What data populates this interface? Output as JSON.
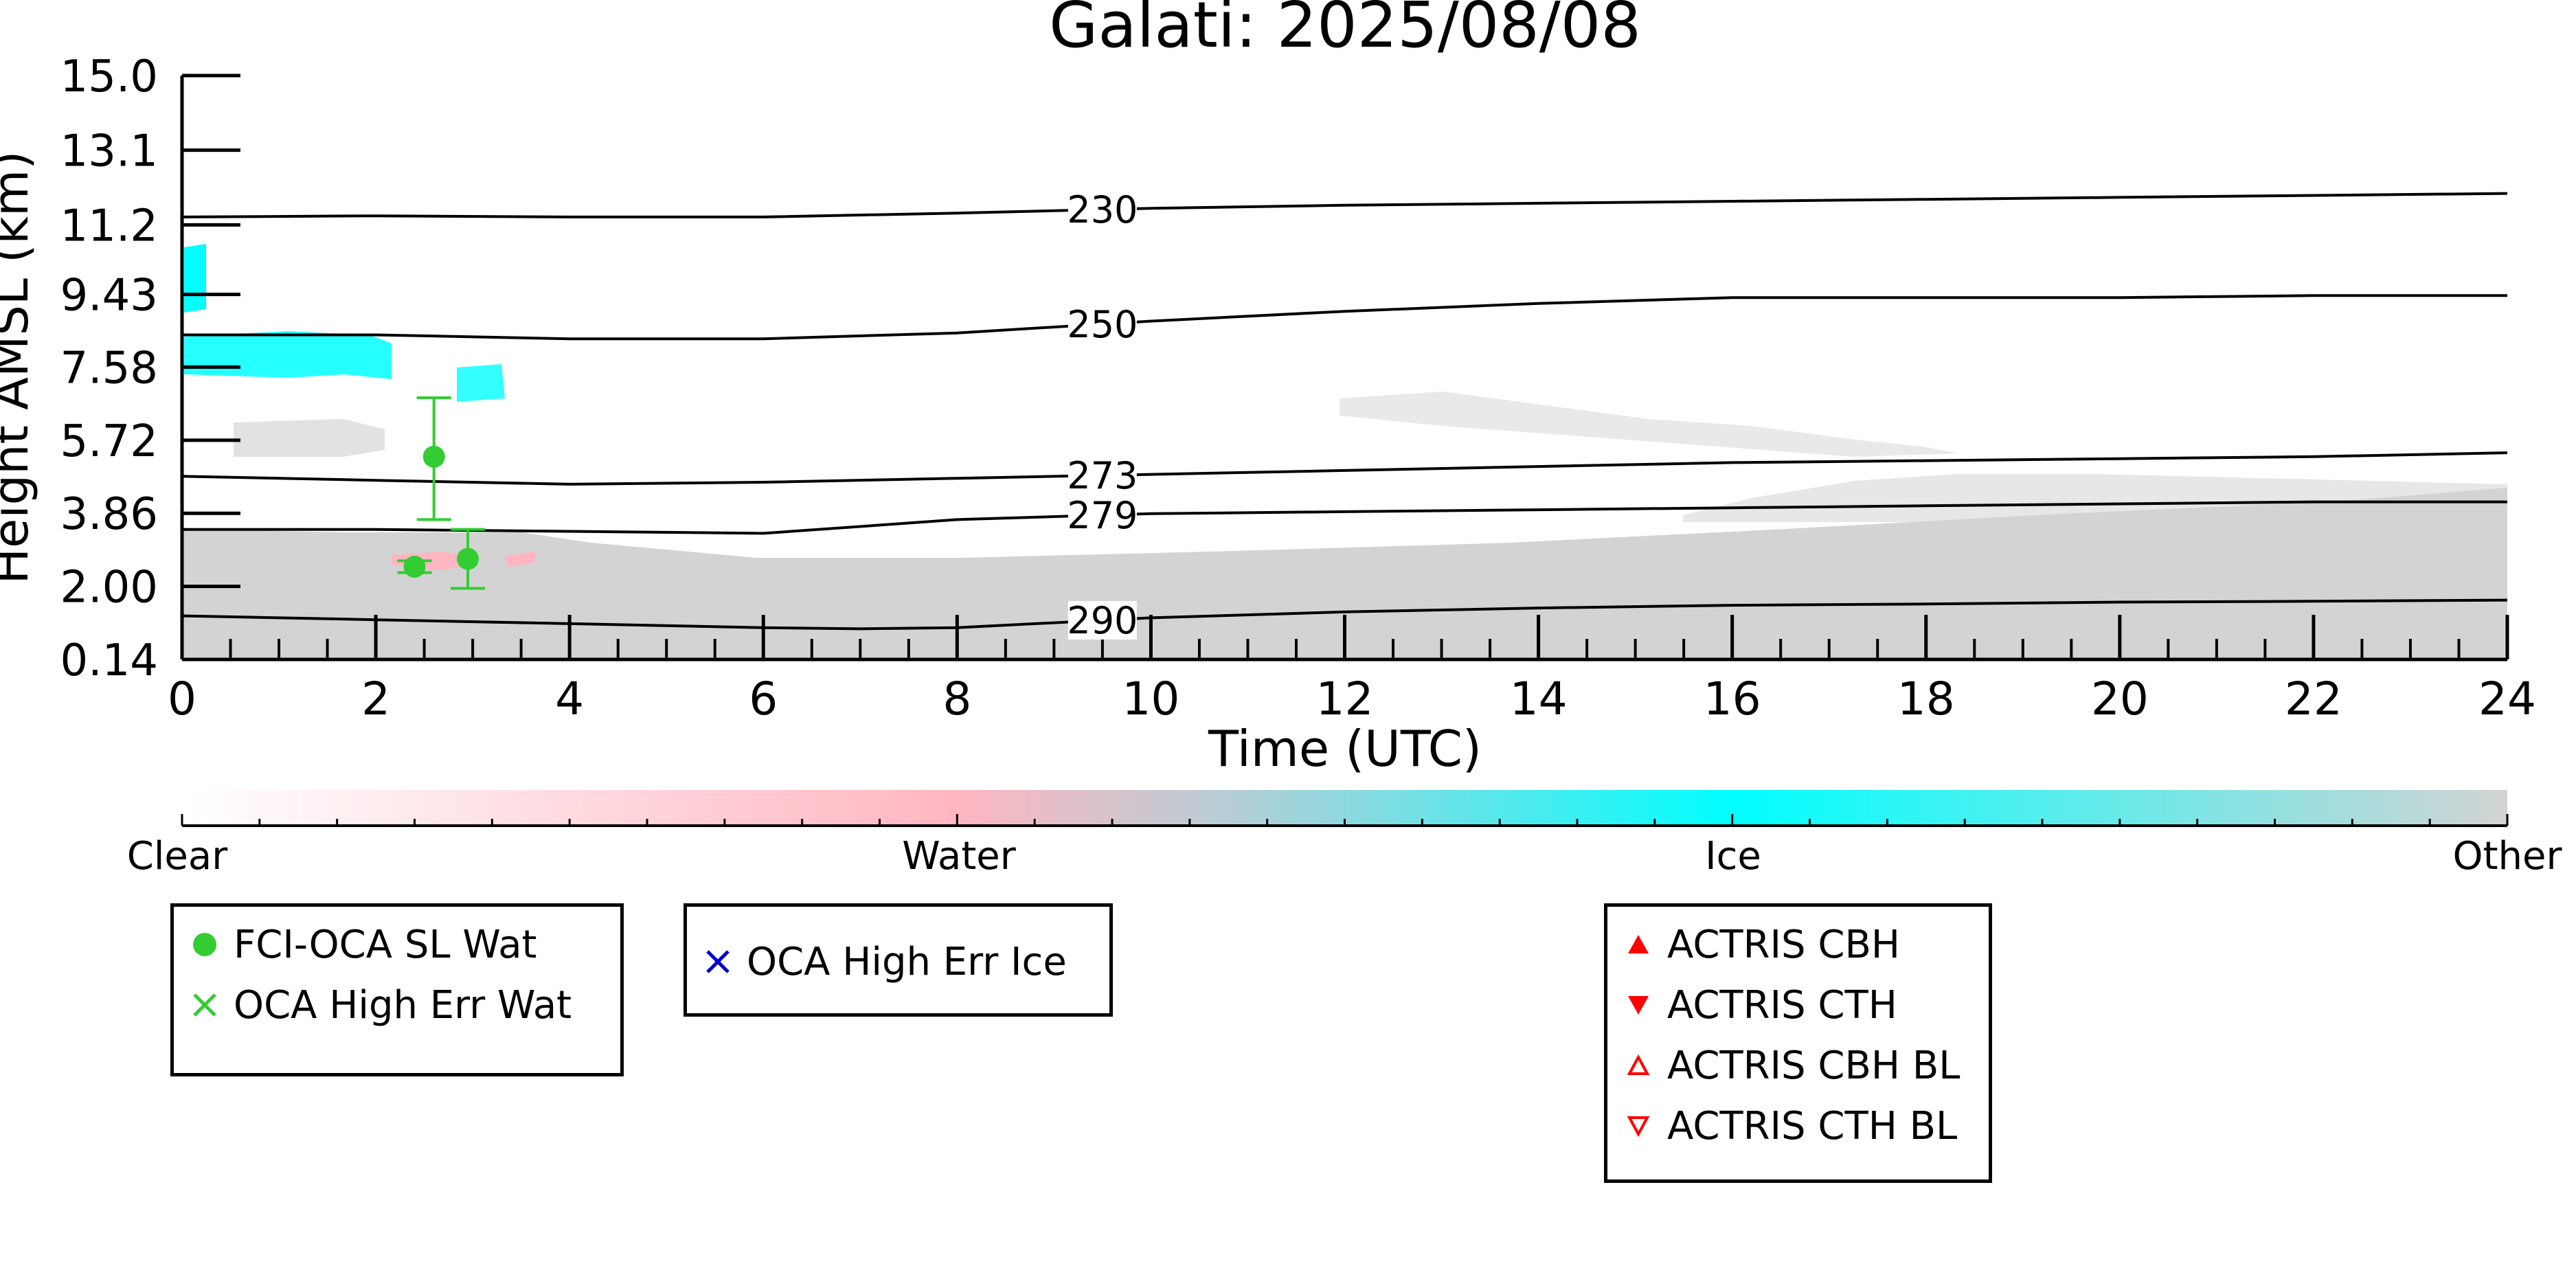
{
  "chart_data": {
    "type": "heatmap",
    "title": "Galati: 2025/08/08",
    "xlabel": "Time (UTC)",
    "ylabel": "Height AMSL (km)",
    "xlim": [
      0,
      24
    ],
    "ylim": [
      0.14,
      15.0
    ],
    "x_ticks": [
      "0",
      "2",
      "4",
      "6",
      "8",
      "10",
      "12",
      "14",
      "16",
      "18",
      "20",
      "22",
      "24"
    ],
    "y_ticks": [
      "0.14",
      "2.00",
      "3.86",
      "5.72",
      "7.58",
      "9.43",
      "11.2",
      "13.1",
      "15.0"
    ],
    "y_tick_values": [
      0.14,
      2.0,
      3.86,
      5.72,
      7.58,
      9.43,
      11.2,
      13.1,
      15.0
    ],
    "colorbar": {
      "labels": [
        "Clear",
        "Water",
        "Ice",
        "Other"
      ],
      "colors": {
        "clear": "#ffffff",
        "water": "#ffb6c1",
        "ice": "#00ffff",
        "other": "#d3d3d3"
      }
    },
    "isotherms": [
      {
        "label": "230",
        "x": [
          0,
          2,
          4,
          6,
          8,
          10,
          12,
          14,
          16,
          18,
          20,
          22,
          24
        ],
        "y": [
          11.4,
          11.43,
          11.4,
          11.4,
          11.5,
          11.62,
          11.7,
          11.75,
          11.8,
          11.85,
          11.9,
          11.95,
          12.0
        ]
      },
      {
        "label": "250",
        "x": [
          0,
          2,
          4,
          6,
          8,
          10,
          12,
          14,
          16,
          18,
          20,
          22,
          24
        ],
        "y": [
          8.4,
          8.4,
          8.3,
          8.3,
          8.45,
          8.75,
          9.0,
          9.2,
          9.35,
          9.35,
          9.35,
          9.4,
          9.4
        ]
      },
      {
        "label": "273",
        "x": [
          0,
          2,
          4,
          6,
          8,
          10,
          12,
          14,
          16,
          18,
          20,
          22,
          24
        ],
        "y": [
          4.8,
          4.7,
          4.6,
          4.65,
          4.75,
          4.85,
          4.95,
          5.05,
          5.15,
          5.2,
          5.25,
          5.3,
          5.4
        ]
      },
      {
        "label": "279",
        "x": [
          0,
          2,
          4,
          6,
          8,
          10,
          12,
          14,
          16,
          18,
          20,
          22,
          24
        ],
        "y": [
          3.45,
          3.45,
          3.4,
          3.35,
          3.7,
          3.85,
          3.9,
          3.95,
          4.0,
          4.05,
          4.1,
          4.15,
          4.15
        ]
      },
      {
        "label": "290",
        "x": [
          0,
          2,
          4,
          6,
          7,
          8,
          10,
          12,
          14,
          16,
          18,
          20,
          22,
          24
        ],
        "y": [
          1.25,
          1.15,
          1.05,
          0.95,
          0.92,
          0.95,
          1.2,
          1.35,
          1.45,
          1.52,
          1.55,
          1.6,
          1.62,
          1.65
        ]
      }
    ],
    "fci_oca_sl_wat": [
      {
        "x": 2.4,
        "y": 2.5,
        "ymin": 2.35,
        "ymax": 2.65
      },
      {
        "x": 2.6,
        "y": 5.3,
        "ymin": 3.7,
        "ymax": 6.8
      },
      {
        "x": 2.95,
        "y": 2.7,
        "ymin": 1.95,
        "ymax": 3.45
      }
    ],
    "legends": [
      {
        "entries": [
          {
            "label": "FCI-OCA SL Wat",
            "marker": "filled-circle",
            "color": "#33cc33"
          },
          {
            "label": "OCA High Err Wat",
            "marker": "x",
            "color": "#33cc33"
          }
        ]
      },
      {
        "entries": [
          {
            "label": "OCA High Err Ice",
            "marker": "x",
            "color": "#0000cc"
          }
        ]
      },
      {
        "entries": [
          {
            "label": "ACTRIS CBH",
            "marker": "triangle-up-filled",
            "color": "#ff0000"
          },
          {
            "label": "ACTRIS CTH",
            "marker": "triangle-down-filled",
            "color": "#ff0000"
          },
          {
            "label": "ACTRIS CBH BL",
            "marker": "triangle-up-open",
            "color": "#ff0000"
          },
          {
            "label": "ACTRIS CTH BL",
            "marker": "triangle-down-open",
            "color": "#ff0000"
          }
        ]
      }
    ]
  }
}
